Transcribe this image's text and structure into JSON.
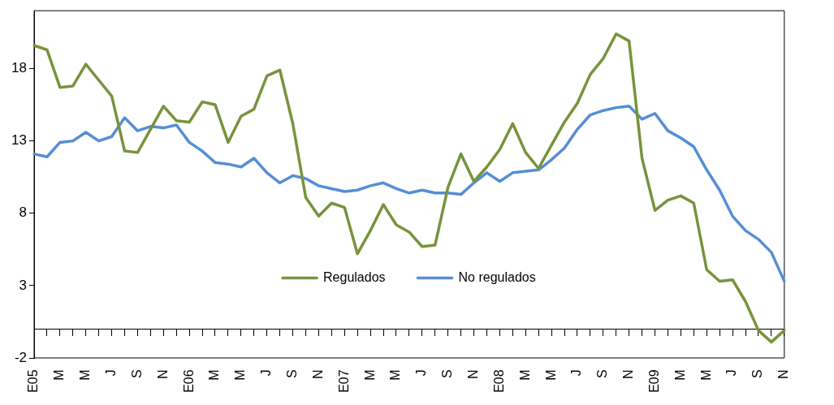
{
  "chart_data": {
    "type": "line",
    "categories": [
      "E05",
      null,
      "M",
      null,
      "M",
      null,
      "J",
      null,
      "S",
      null,
      "N",
      null,
      "E06",
      null,
      "M",
      null,
      "M",
      null,
      "J",
      null,
      "S",
      null,
      "N",
      null,
      "E07",
      null,
      "M",
      null,
      "M",
      null,
      "J",
      null,
      "S",
      null,
      "N",
      null,
      "E08",
      null,
      "M",
      null,
      "M",
      null,
      "J",
      null,
      "S",
      null,
      "N",
      null,
      "E09",
      null,
      "M",
      null,
      "M",
      null,
      "J",
      null,
      "S",
      null,
      "N"
    ],
    "series": [
      {
        "name": "Regulados",
        "color": "#77933c",
        "values": [
          19.6,
          19.3,
          16.7,
          16.8,
          18.3,
          17.2,
          16.1,
          12.3,
          12.2,
          13.8,
          15.4,
          14.4,
          14.3,
          15.7,
          15.5,
          12.9,
          14.7,
          15.2,
          17.5,
          17.9,
          14.2,
          9.1,
          7.8,
          8.7,
          8.4,
          5.2,
          6.8,
          8.6,
          7.2,
          6.7,
          5.7,
          5.8,
          9.8,
          12.1,
          10.2,
          11.2,
          12.4,
          14.2,
          12.2,
          11.1,
          12.7,
          14.3,
          15.6,
          17.6,
          18.7,
          20.4,
          19.9,
          11.8,
          8.2,
          8.9,
          9.2,
          8.7,
          4.1,
          3.3,
          3.4,
          1.9,
          -0.1,
          -0.9,
          -0.1
        ]
      },
      {
        "name": "No regulados",
        "color": "#558ed5",
        "values": [
          12.1,
          11.9,
          12.9,
          13.0,
          13.6,
          13.0,
          13.3,
          14.6,
          13.7,
          14.0,
          13.9,
          14.1,
          12.9,
          12.3,
          11.5,
          11.4,
          11.2,
          11.8,
          10.8,
          10.1,
          10.6,
          10.4,
          9.9,
          9.7,
          9.5,
          9.6,
          9.9,
          10.1,
          9.7,
          9.4,
          9.6,
          9.4,
          9.4,
          9.3,
          10.1,
          10.8,
          10.2,
          10.8,
          10.9,
          11.0,
          11.7,
          12.5,
          13.8,
          14.8,
          15.1,
          15.3,
          15.4,
          14.5,
          14.9,
          13.7,
          13.2,
          12.6,
          11.0,
          9.6,
          7.8,
          6.8,
          6.2,
          5.3,
          3.3
        ]
      }
    ],
    "ylim": [
      -2,
      22
    ],
    "yticks": [
      -2,
      3,
      8,
      13,
      18
    ],
    "grid": false,
    "legend": "bottom",
    "marker": "none",
    "line_style": "solid"
  }
}
